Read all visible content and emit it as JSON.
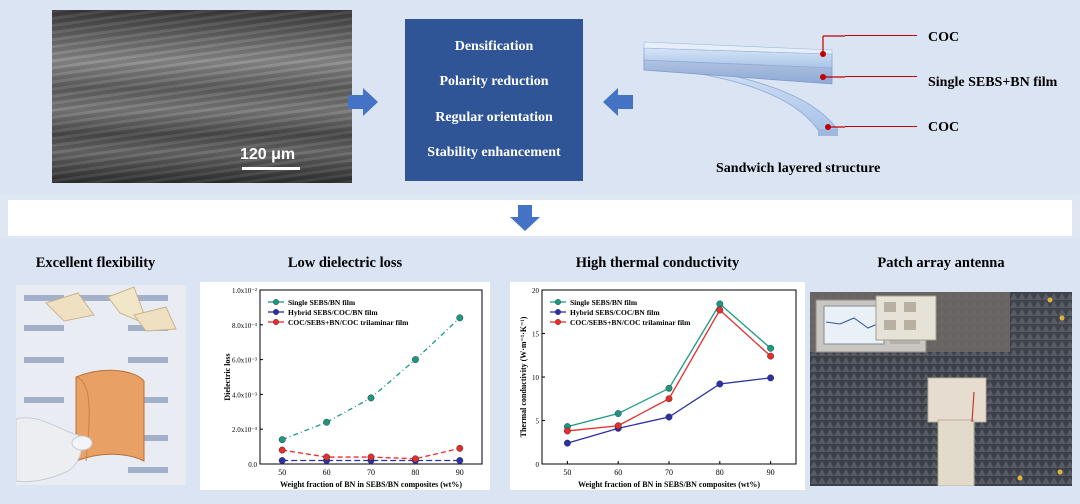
{
  "top": {
    "sem_scale": "120 μm",
    "process_items": [
      "Densification",
      "Polarity reduction",
      "Regular orientation",
      "Stability enhancement"
    ],
    "structure_labels": {
      "top": "COC",
      "middle": "Single SEBS+BN film",
      "bottom": "COC"
    },
    "structure_caption": "Sandwich layered structure"
  },
  "bottom": {
    "titles": {
      "flexibility": "Excellent flexibility",
      "dielectric": "Low dielectric loss",
      "thermal": "High thermal conductivity",
      "antenna": "Patch array antenna"
    }
  },
  "colors": {
    "accent_box": "#2f5597",
    "arrow": "#4472c4",
    "single": "#1a9a82",
    "hybrid": "#2b2fa8",
    "trilaminar": "#e82d2d"
  },
  "chart_data": [
    {
      "type": "line",
      "xlabel": "Weight fraction of BN in SEBS/BN composites (wt%)",
      "ylabel": "Dielectric loss",
      "x": [
        50,
        60,
        70,
        80,
        90
      ],
      "xticks": [
        "50",
        "60",
        "70",
        "80",
        "90"
      ],
      "ylim": [
        0,
        0.01
      ],
      "yticks": [
        "0.0",
        "2.0x10⁻³",
        "4.0x10⁻³",
        "6.0x10⁻³",
        "8.0x10⁻³",
        "1.0x10⁻²"
      ],
      "legend_position": "top-left",
      "series": [
        {
          "name": "Single SEBS/BN film",
          "values": [
            0.0014,
            0.0024,
            0.0038,
            0.006,
            0.0084
          ]
        },
        {
          "name": "Hybrid SEBS/COC/BN film",
          "values": [
            0.0002,
            0.0002,
            0.0002,
            0.0002,
            0.0002
          ]
        },
        {
          "name": "COC/SEBS+BN/COC trilaminar film",
          "values": [
            0.0008,
            0.0004,
            0.0004,
            0.0003,
            0.0009
          ]
        }
      ]
    },
    {
      "type": "line",
      "xlabel": "Weight fraction of BN in SEBS/BN composites (wt%)",
      "ylabel": "Thermal conductivity (W·m⁻¹·K⁻¹)",
      "x": [
        50,
        60,
        70,
        80,
        90
      ],
      "xticks": [
        "50",
        "60",
        "70",
        "80",
        "90"
      ],
      "ylim": [
        0,
        20
      ],
      "yticks": [
        "0",
        "5",
        "10",
        "15",
        "20"
      ],
      "legend_position": "top-left",
      "series": [
        {
          "name": "Single SEBS/BN film",
          "values": [
            4.3,
            5.8,
            8.7,
            18.4,
            13.3
          ]
        },
        {
          "name": "Hybrid SEBS/COC/BN film",
          "values": [
            2.4,
            4.1,
            5.4,
            9.2,
            9.9
          ]
        },
        {
          "name": "COC/SEBS+BN/COC trilaminar film",
          "values": [
            3.8,
            4.4,
            7.5,
            17.7,
            12.4
          ]
        }
      ]
    }
  ]
}
